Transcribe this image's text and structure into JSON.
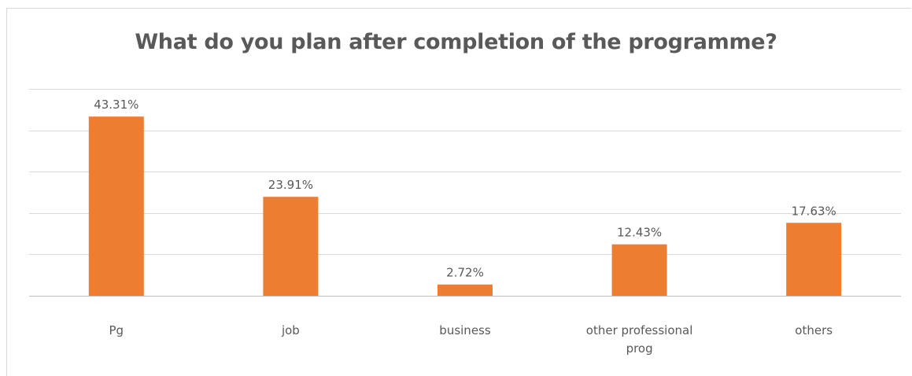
{
  "chart_data": {
    "type": "bar",
    "title": "What do you plan after completion of the programme?",
    "categories": [
      "Pg",
      "job",
      "business",
      "other professional prog",
      "others"
    ],
    "category_lines": [
      [
        "Pg"
      ],
      [
        "job"
      ],
      [
        "business"
      ],
      [
        "other professional",
        "prog"
      ],
      [
        "others"
      ]
    ],
    "values": [
      43.31,
      23.91,
      2.72,
      12.43,
      17.63
    ],
    "data_labels": [
      "43.31%",
      "23.91%",
      "2.72%",
      "12.43%",
      "17.63%"
    ],
    "ylim": [
      0,
      50
    ],
    "grid": true,
    "legend": "none",
    "bar_color": "#ED7D31",
    "grid_color": "#D9D9D9",
    "axis_color": "#BFBFBF",
    "text_color": "#595959"
  }
}
